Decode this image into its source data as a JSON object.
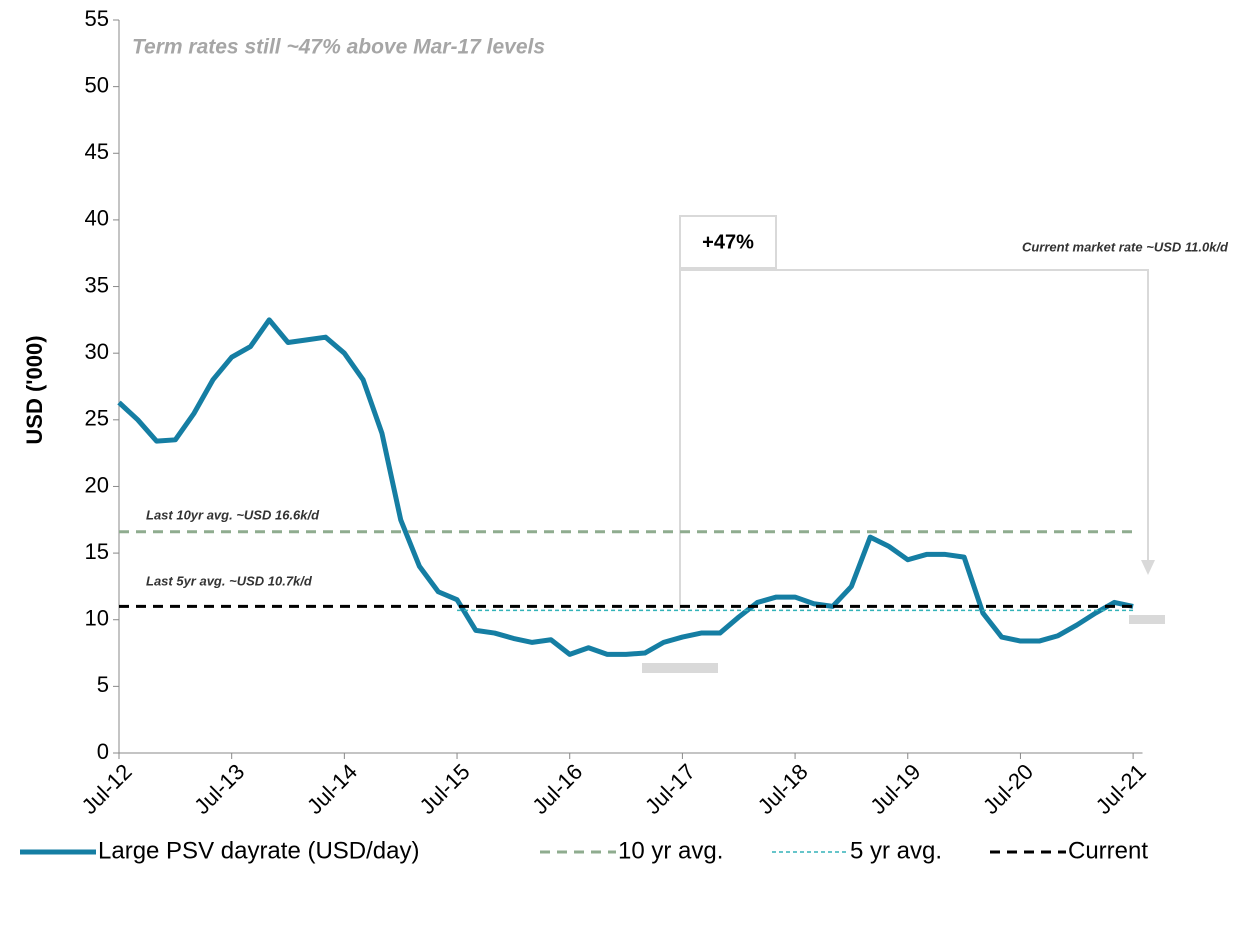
{
  "chart_data": {
    "type": "line",
    "title": "Term rates still ~47%  above Mar-17 levels",
    "y_label": "USD ('000)",
    "annotations": [
      "+47%",
      "Current market rate ~USD 11.0k/d",
      "Last 10yr avg. ~USD 16.6k/d",
      "Last 5yr avg. ~USD 10.7k/d"
    ],
    "xlim": [
      "Jul-12",
      "Aug-21"
    ],
    "xticks": [
      "Jul-12",
      "Jul-13",
      "Jul-14",
      "Jul-15",
      "Jul-16",
      "Jul-17",
      "Jul-18",
      "Jul-19",
      "Jul-20",
      "Jul-21"
    ],
    "ylim": [
      0,
      55
    ],
    "yticks": [
      0,
      5,
      10,
      15,
      20,
      25,
      30,
      35,
      40,
      45,
      50,
      55
    ],
    "legend": "bottom",
    "series": [
      {
        "name": "Large PSV dayrate (USD/day)",
        "color": "#157ea3",
        "style": "solid",
        "x": [
          "Jul-12",
          "Sep-12",
          "Nov-12",
          "Jan-13",
          "Mar-13",
          "May-13",
          "Jul-13",
          "Sep-13",
          "Nov-13",
          "Jan-14",
          "Mar-14",
          "May-14",
          "Jul-14",
          "Sep-14",
          "Nov-14",
          "Jan-15",
          "Mar-15",
          "May-15",
          "Jul-15",
          "Sep-15",
          "Nov-15",
          "Jan-16",
          "Mar-16",
          "May-16",
          "Jul-16",
          "Sep-16",
          "Nov-16",
          "Jan-17",
          "Mar-17",
          "May-17",
          "Jul-17",
          "Sep-17",
          "Nov-17",
          "Jan-18",
          "Mar-18",
          "May-18",
          "Jul-18",
          "Sep-18",
          "Nov-18",
          "Jan-19",
          "Mar-19",
          "May-19",
          "Jul-19",
          "Sep-19",
          "Nov-19",
          "Jan-20",
          "Mar-20",
          "May-20",
          "Jul-20",
          "Sep-20",
          "Nov-20",
          "Jan-21",
          "Mar-21",
          "May-21",
          "Jul-21"
        ],
        "values": [
          26.3,
          25,
          23.4,
          23.5,
          25.5,
          28,
          29.7,
          30.5,
          32.5,
          30.8,
          31,
          31.2,
          30,
          28,
          24,
          17.5,
          14,
          12.1,
          11.5,
          9.2,
          9.0,
          8.6,
          8.3,
          8.5,
          7.4,
          7.9,
          7.4,
          7.4,
          7.5,
          8.3,
          8.7,
          9.0,
          9.0,
          10.2,
          11.3,
          11.7,
          11.7,
          11.2,
          11.0,
          12.5,
          16.2,
          15.5,
          14.5,
          14.9,
          14.9,
          14.7,
          10.5,
          8.7,
          8.4,
          8.4,
          8.8,
          9.6,
          10.5,
          11.3,
          11.0
        ]
      },
      {
        "name": "10 yr avg.",
        "color": "#8fac8f",
        "style": "dash",
        "x": [
          "Jul-12",
          "Jul-21"
        ],
        "values": [
          16.6,
          16.6
        ]
      },
      {
        "name": "5 yr avg.",
        "color": "#33b2b8",
        "style": "dot",
        "x": [
          "Jul-15",
          "Jul-21"
        ],
        "values": [
          10.7,
          10.7
        ]
      },
      {
        "name": "Current",
        "color": "#000000",
        "style": "dash",
        "x": [
          "Jul-12",
          "Jul-21"
        ],
        "values": [
          11.0,
          11.0
        ]
      }
    ]
  }
}
